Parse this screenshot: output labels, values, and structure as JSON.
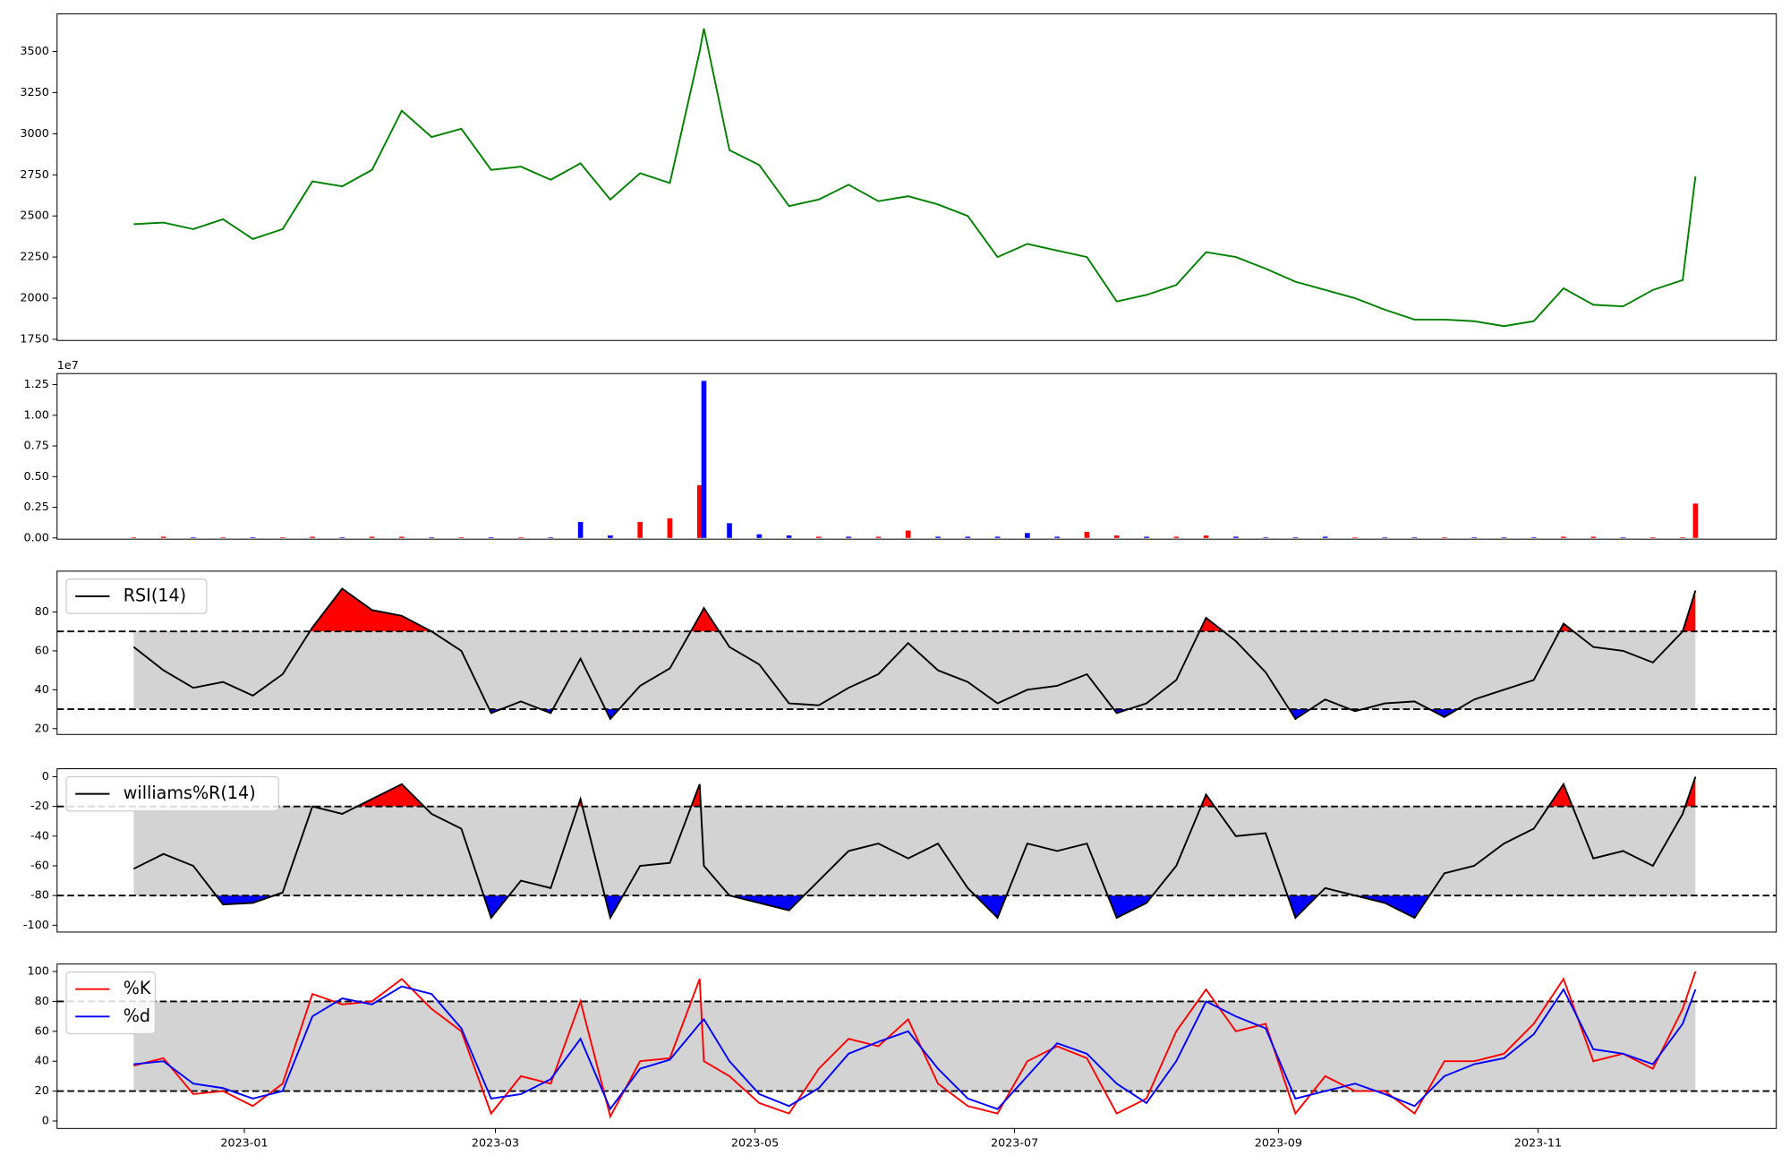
{
  "chart_data": [
    {
      "type": "line",
      "x": [
        "2022-12-06",
        "2022-12-13",
        "2022-12-20",
        "2022-12-27",
        "2023-01-03",
        "2023-01-10",
        "2023-01-17",
        "2023-01-24",
        "2023-01-31",
        "2023-02-07",
        "2023-02-14",
        "2023-02-21",
        "2023-02-28",
        "2023-03-07",
        "2023-03-14",
        "2023-03-21",
        "2023-03-28",
        "2023-04-04",
        "2023-04-11",
        "2023-04-18",
        "2023-04-19",
        "2023-04-25",
        "2023-05-02",
        "2023-05-09",
        "2023-05-16",
        "2023-05-23",
        "2023-05-30",
        "2023-06-06",
        "2023-06-13",
        "2023-06-20",
        "2023-06-27",
        "2023-07-04",
        "2023-07-11",
        "2023-07-18",
        "2023-07-25",
        "2023-08-01",
        "2023-08-08",
        "2023-08-15",
        "2023-08-22",
        "2023-08-29",
        "2023-09-05",
        "2023-09-12",
        "2023-09-19",
        "2023-09-26",
        "2023-10-03",
        "2023-10-10",
        "2023-10-17",
        "2023-10-24",
        "2023-10-31",
        "2023-11-07",
        "2023-11-14",
        "2023-11-21",
        "2023-11-28",
        "2023-12-05",
        "2023-12-08"
      ],
      "series": [
        {
          "color": "#008000",
          "values": [
            2450,
            2460,
            2420,
            2480,
            2360,
            2420,
            2710,
            2680,
            2780,
            3140,
            2980,
            3030,
            2780,
            2800,
            2720,
            2820,
            2600,
            2760,
            2700,
            3500,
            3640,
            2900,
            2810,
            2560,
            2600,
            2690,
            2590,
            2620,
            2570,
            2500,
            2250,
            2330,
            2290,
            2250,
            1980,
            2020,
            2080,
            2280,
            2250,
            2180,
            2100,
            2050,
            2000,
            1930,
            1870,
            1870,
            1860,
            1830,
            1860,
            2060,
            1960,
            1950,
            2050,
            2110,
            2740
          ]
        }
      ],
      "xlim": [
        "2022-11-18",
        "2023-12-27"
      ],
      "ylim": [
        1743,
        3729
      ],
      "yticks": [
        1750,
        2000,
        2250,
        2500,
        2750,
        3000,
        3250,
        3500
      ]
    },
    {
      "type": "bar",
      "offset_label": "1e7",
      "x": [
        "2022-12-06",
        "2022-12-13",
        "2022-12-20",
        "2022-12-27",
        "2023-01-03",
        "2023-01-10",
        "2023-01-17",
        "2023-01-24",
        "2023-01-31",
        "2023-02-07",
        "2023-02-14",
        "2023-02-21",
        "2023-02-28",
        "2023-03-07",
        "2023-03-14",
        "2023-03-21",
        "2023-03-28",
        "2023-04-04",
        "2023-04-11",
        "2023-04-18",
        "2023-04-19",
        "2023-04-25",
        "2023-05-02",
        "2023-05-09",
        "2023-05-16",
        "2023-05-23",
        "2023-05-30",
        "2023-06-06",
        "2023-06-13",
        "2023-06-20",
        "2023-06-27",
        "2023-07-04",
        "2023-07-11",
        "2023-07-18",
        "2023-07-25",
        "2023-08-01",
        "2023-08-08",
        "2023-08-15",
        "2023-08-22",
        "2023-08-29",
        "2023-09-05",
        "2023-09-12",
        "2023-09-19",
        "2023-09-26",
        "2023-10-03",
        "2023-10-10",
        "2023-10-17",
        "2023-10-24",
        "2023-10-31",
        "2023-11-07",
        "2023-11-14",
        "2023-11-21",
        "2023-11-28",
        "2023-12-05",
        "2023-12-08"
      ],
      "values": [
        0.005,
        0.01,
        0.005,
        0.005,
        0.005,
        0.005,
        0.01,
        0.005,
        0.01,
        0.01,
        0.005,
        0.005,
        0.005,
        0.005,
        0.005,
        0.13,
        0.02,
        0.13,
        0.16,
        0.43,
        1.28,
        0.12,
        0.03,
        0.02,
        0.01,
        0.01,
        0.01,
        0.06,
        0.01,
        0.01,
        0.01,
        0.04,
        0.01,
        0.05,
        0.02,
        0.01,
        0.01,
        0.02,
        0.01,
        0.005,
        0.005,
        0.01,
        0.005,
        0.005,
        0.005,
        0.005,
        0.005,
        0.005,
        0.005,
        0.01,
        0.01,
        0.005,
        0.005,
        0.005,
        0.28
      ],
      "colors": [
        "#ff0000",
        "#ff0000",
        "#0000ff",
        "#ff0000",
        "#0000ff",
        "#ff0000",
        "#ff0000",
        "#0000ff",
        "#ff0000",
        "#ff0000",
        "#0000ff",
        "#ff0000",
        "#0000ff",
        "#ff0000",
        "#0000ff",
        "#0000ff",
        "#0000ff",
        "#ff0000",
        "#ff0000",
        "#ff0000",
        "#0000ff",
        "#0000ff",
        "#0000ff",
        "#0000ff",
        "#ff0000",
        "#0000ff",
        "#ff0000",
        "#ff0000",
        "#0000ff",
        "#0000ff",
        "#0000ff",
        "#0000ff",
        "#0000ff",
        "#ff0000",
        "#ff0000",
        "#0000ff",
        "#ff0000",
        "#ff0000",
        "#0000ff",
        "#0000ff",
        "#0000ff",
        "#0000ff",
        "#ff0000",
        "#0000ff",
        "#0000ff",
        "#ff0000",
        "#0000ff",
        "#0000ff",
        "#0000ff",
        "#ff0000",
        "#ff0000",
        "#0000ff",
        "#ff0000",
        "#ff0000",
        "#ff0000"
      ],
      "xlim": [
        "2022-11-18",
        "2023-12-27"
      ],
      "ylim": [
        -0.01,
        1.34
      ],
      "yticks": [
        {
          "value": 0,
          "label": "0.00"
        },
        0.25,
        {
          "value": 0.5,
          "label": "0.50"
        },
        0.75,
        {
          "value": 1,
          "label": "1.00"
        },
        1.25
      ]
    },
    {
      "type": "oscillator",
      "legend": "upper left",
      "thresholds": [
        30,
        70
      ],
      "band_color": "#d3d3d3",
      "upper_fill": "#ff0000",
      "lower_fill": "#0000ff",
      "x": [
        "2022-12-06",
        "2022-12-13",
        "2022-12-20",
        "2022-12-27",
        "2023-01-03",
        "2023-01-10",
        "2023-01-17",
        "2023-01-24",
        "2023-01-31",
        "2023-02-07",
        "2023-02-14",
        "2023-02-21",
        "2023-02-28",
        "2023-03-07",
        "2023-03-14",
        "2023-03-21",
        "2023-03-28",
        "2023-04-04",
        "2023-04-11",
        "2023-04-18",
        "2023-04-19",
        "2023-04-25",
        "2023-05-02",
        "2023-05-09",
        "2023-05-16",
        "2023-05-23",
        "2023-05-30",
        "2023-06-06",
        "2023-06-13",
        "2023-06-20",
        "2023-06-27",
        "2023-07-04",
        "2023-07-11",
        "2023-07-18",
        "2023-07-25",
        "2023-08-01",
        "2023-08-08",
        "2023-08-15",
        "2023-08-22",
        "2023-08-29",
        "2023-09-05",
        "2023-09-12",
        "2023-09-19",
        "2023-09-26",
        "2023-10-03",
        "2023-10-10",
        "2023-10-17",
        "2023-10-24",
        "2023-10-31",
        "2023-11-07",
        "2023-11-14",
        "2023-11-21",
        "2023-11-28",
        "2023-12-05",
        "2023-12-08"
      ],
      "series": [
        {
          "name": "RSI(14)",
          "color": "#000000",
          "values": [
            62,
            50,
            41,
            44,
            37,
            48,
            72,
            92,
            81,
            78,
            70,
            60,
            28,
            34,
            28,
            56,
            25,
            42,
            51,
            78,
            82,
            62,
            53,
            33,
            32,
            41,
            48,
            64,
            50,
            44,
            33,
            40,
            42,
            48,
            28,
            33,
            45,
            77,
            65,
            49,
            25,
            35,
            29,
            33,
            34,
            26,
            35,
            40,
            45,
            74,
            62,
            60,
            54,
            70,
            91
          ]
        }
      ],
      "xlim": [
        "2022-11-18",
        "2023-12-27"
      ],
      "ylim": [
        17,
        101
      ],
      "yticks": [
        20,
        40,
        60,
        80
      ]
    },
    {
      "type": "oscillator",
      "legend": "upper left",
      "thresholds": [
        -80,
        -20
      ],
      "band_color": "#d3d3d3",
      "upper_fill": "#ff0000",
      "lower_fill": "#0000ff",
      "x": [
        "2022-12-06",
        "2022-12-13",
        "2022-12-20",
        "2022-12-27",
        "2023-01-03",
        "2023-01-10",
        "2023-01-17",
        "2023-01-24",
        "2023-01-31",
        "2023-02-07",
        "2023-02-14",
        "2023-02-21",
        "2023-02-28",
        "2023-03-07",
        "2023-03-14",
        "2023-03-21",
        "2023-03-28",
        "2023-04-04",
        "2023-04-11",
        "2023-04-18",
        "2023-04-19",
        "2023-04-25",
        "2023-05-02",
        "2023-05-09",
        "2023-05-16",
        "2023-05-23",
        "2023-05-30",
        "2023-06-06",
        "2023-06-13",
        "2023-06-20",
        "2023-06-27",
        "2023-07-04",
        "2023-07-11",
        "2023-07-18",
        "2023-07-25",
        "2023-08-01",
        "2023-08-08",
        "2023-08-15",
        "2023-08-22",
        "2023-08-29",
        "2023-09-05",
        "2023-09-12",
        "2023-09-19",
        "2023-09-26",
        "2023-10-03",
        "2023-10-10",
        "2023-10-17",
        "2023-10-24",
        "2023-10-31",
        "2023-11-07",
        "2023-11-14",
        "2023-11-21",
        "2023-11-28",
        "2023-12-05",
        "2023-12-08"
      ],
      "series": [
        {
          "name": "williams%R(14)",
          "color": "#000000",
          "values": [
            -62,
            -52,
            -60,
            -86,
            -85,
            -78,
            -20,
            -25,
            -15,
            -5,
            -25,
            -35,
            -95,
            -70,
            -75,
            -15,
            -95,
            -60,
            -58,
            -5,
            -60,
            -80,
            -85,
            -90,
            -70,
            -50,
            -45,
            -55,
            -45,
            -75,
            -95,
            -45,
            -50,
            -45,
            -95,
            -85,
            -60,
            -12,
            -40,
            -38,
            -95,
            -75,
            -80,
            -85,
            -95,
            -65,
            -60,
            -45,
            -35,
            -5,
            -55,
            -50,
            -60,
            -25,
            0
          ]
        }
      ],
      "xlim": [
        "2022-11-18",
        "2023-12-27"
      ],
      "ylim": [
        -104.6,
        5.4
      ],
      "yticks": [
        -100,
        -80,
        -60,
        -40,
        -20,
        0
      ]
    },
    {
      "type": "oscillator",
      "legend": "upper left",
      "thresholds": [
        20,
        80
      ],
      "band_color": "#d3d3d3",
      "x": [
        "2022-12-06",
        "2022-12-13",
        "2022-12-20",
        "2022-12-27",
        "2023-01-03",
        "2023-01-10",
        "2023-01-17",
        "2023-01-24",
        "2023-01-31",
        "2023-02-07",
        "2023-02-14",
        "2023-02-21",
        "2023-02-28",
        "2023-03-07",
        "2023-03-14",
        "2023-03-21",
        "2023-03-28",
        "2023-04-04",
        "2023-04-11",
        "2023-04-18",
        "2023-04-19",
        "2023-04-25",
        "2023-05-02",
        "2023-05-09",
        "2023-05-16",
        "2023-05-23",
        "2023-05-30",
        "2023-06-06",
        "2023-06-13",
        "2023-06-20",
        "2023-06-27",
        "2023-07-04",
        "2023-07-11",
        "2023-07-18",
        "2023-07-25",
        "2023-08-01",
        "2023-08-08",
        "2023-08-15",
        "2023-08-22",
        "2023-08-29",
        "2023-09-05",
        "2023-09-12",
        "2023-09-19",
        "2023-09-26",
        "2023-10-03",
        "2023-10-10",
        "2023-10-17",
        "2023-10-24",
        "2023-10-31",
        "2023-11-07",
        "2023-11-14",
        "2023-11-21",
        "2023-11-28",
        "2023-12-05",
        "2023-12-08"
      ],
      "series": [
        {
          "name": "%K",
          "color": "#ff0000",
          "values": [
            37,
            42,
            18,
            20,
            10,
            25,
            85,
            78,
            80,
            95,
            75,
            60,
            5,
            30,
            25,
            80,
            3,
            40,
            42,
            95,
            40,
            30,
            12,
            5,
            35,
            55,
            50,
            68,
            25,
            10,
            5,
            40,
            50,
            42,
            5,
            15,
            60,
            88,
            60,
            65,
            5,
            30,
            20,
            20,
            5,
            40,
            40,
            45,
            65,
            95,
            40,
            45,
            35,
            75,
            100
          ]
        },
        {
          "name": "%d",
          "color": "#0000ff",
          "values": [
            38,
            40,
            25,
            22,
            15,
            20,
            70,
            82,
            78,
            90,
            85,
            62,
            15,
            18,
            28,
            55,
            8,
            35,
            41,
            65,
            68,
            40,
            18,
            10,
            22,
            45,
            53,
            60,
            35,
            15,
            8,
            30,
            52,
            45,
            25,
            12,
            40,
            80,
            70,
            62,
            15,
            20,
            25,
            18,
            10,
            30,
            38,
            42,
            58,
            88,
            48,
            45,
            38,
            65,
            88
          ]
        }
      ],
      "xlim": [
        "2022-11-18",
        "2023-12-27"
      ],
      "ylim": [
        -5,
        105
      ],
      "yticks": [
        0,
        20,
        40,
        60,
        80,
        100
      ],
      "xticks": [
        {
          "value": "2023-01-01",
          "label": "2023-01"
        },
        {
          "value": "2023-03-01",
          "label": "2023-03"
        },
        {
          "value": "2023-05-01",
          "label": "2023-05"
        },
        {
          "value": "2023-07-01",
          "label": "2023-07"
        },
        {
          "value": "2023-09-01",
          "label": "2023-09"
        },
        {
          "value": "2023-11-01",
          "label": "2023-11"
        }
      ]
    }
  ]
}
